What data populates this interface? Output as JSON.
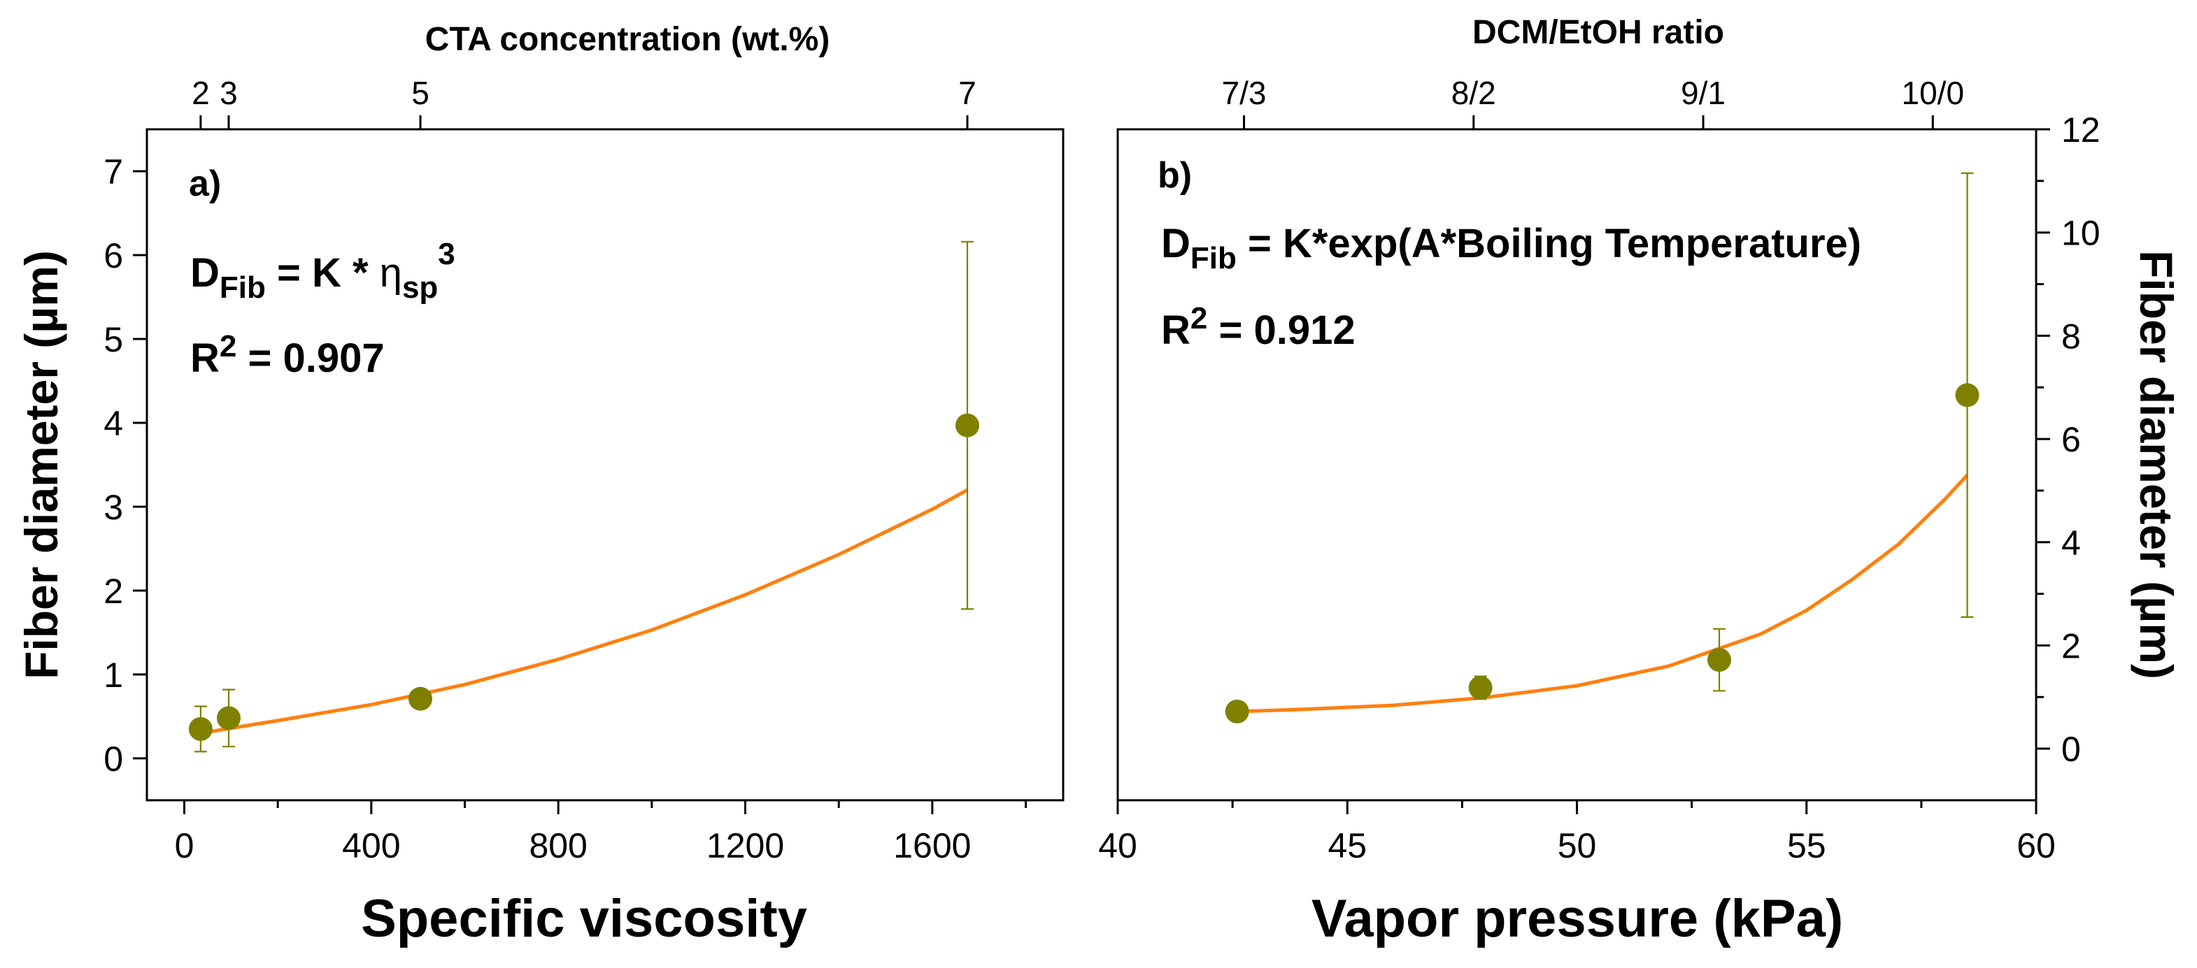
{
  "chart_data": [
    {
      "type": "scatter",
      "panel_label": "a)",
      "xlabel": "Specific viscosity",
      "ylabel": "Fiber diameter (µm)",
      "xlim": [
        -80,
        1880
      ],
      "ylim": [
        -0.5,
        7.5
      ],
      "xticks": [
        0,
        400,
        800,
        1200,
        1600
      ],
      "xticks_minor": [
        200,
        600,
        1000,
        1400,
        1800
      ],
      "yticks": [
        0,
        1,
        2,
        3,
        4,
        5,
        6,
        7
      ],
      "top_axis": {
        "title": "CTA concentration (wt.%)",
        "ticks": [
          {
            "label": "2",
            "x": 35
          },
          {
            "label": "3",
            "x": 95
          },
          {
            "label": "5",
            "x": 505
          },
          {
            "label": "7",
            "x": 1675
          }
        ]
      },
      "points": [
        {
          "x": 35,
          "y": 0.35,
          "err": 0.27
        },
        {
          "x": 95,
          "y": 0.48,
          "err": 0.34
        },
        {
          "x": 505,
          "y": 0.71,
          "err": 0.05
        },
        {
          "x": 1675,
          "y": 3.97,
          "err": 2.19
        }
      ],
      "fit": {
        "x": [
          35,
          200,
          400,
          600,
          800,
          1000,
          1200,
          1400,
          1600,
          1675
        ],
        "y": [
          0.3,
          0.45,
          0.64,
          0.88,
          1.18,
          1.53,
          1.95,
          2.43,
          2.97,
          3.2
        ]
      },
      "annotations": {
        "equation_lhs": "D",
        "equation_lhs_sub": "Fib",
        "equation_mid": " = K * ",
        "equation_var": "η",
        "equation_var_sub": "sp",
        "equation_var_sup": "3",
        "r2_label": "R",
        "r2_sup": "2",
        "r2_value": " = 0.907"
      }
    },
    {
      "type": "scatter",
      "panel_label": "b)",
      "xlabel": "Vapor pressure (kPa)",
      "ylabel": "Fiber diameter (µm)",
      "y_axis_side": "right",
      "xlim": [
        40,
        60
      ],
      "ylim": [
        -1,
        12
      ],
      "xticks": [
        40,
        45,
        50,
        55,
        60
      ],
      "xticks_minor": [
        42.5,
        47.5,
        52.5,
        57.5
      ],
      "yticks": [
        0,
        2,
        4,
        6,
        8,
        10,
        12
      ],
      "yticks_minor": [
        1,
        3,
        5,
        7,
        9,
        11
      ],
      "top_axis": {
        "title": "DCM/EtOH ratio",
        "ticks": [
          {
            "label": "7/3",
            "x": 42.75
          },
          {
            "label": "8/2",
            "x": 47.75
          },
          {
            "label": "9/1",
            "x": 52.75
          },
          {
            "label": "10/0",
            "x": 57.75
          }
        ]
      },
      "points": [
        {
          "x": 42.6,
          "y": 0.72,
          "err": 0.05
        },
        {
          "x": 47.9,
          "y": 1.18,
          "err": 0.22
        },
        {
          "x": 53.1,
          "y": 1.72,
          "err": 0.6
        },
        {
          "x": 58.5,
          "y": 6.85,
          "err": 4.3
        }
      ],
      "fit": {
        "x": [
          42.6,
          44,
          46,
          48,
          50,
          52,
          54,
          55,
          56,
          57,
          58,
          58.5
        ],
        "y": [
          0.72,
          0.76,
          0.84,
          0.99,
          1.22,
          1.6,
          2.22,
          2.68,
          3.28,
          3.96,
          4.82,
          5.3
        ]
      },
      "annotations": {
        "equation_lhs": "D",
        "equation_lhs_sub": "Fib",
        "equation_rhs": " = K*exp(A*Boiling Temperature)",
        "r2_label": "R",
        "r2_sup": "2",
        "r2_value": " = 0.912"
      }
    }
  ]
}
